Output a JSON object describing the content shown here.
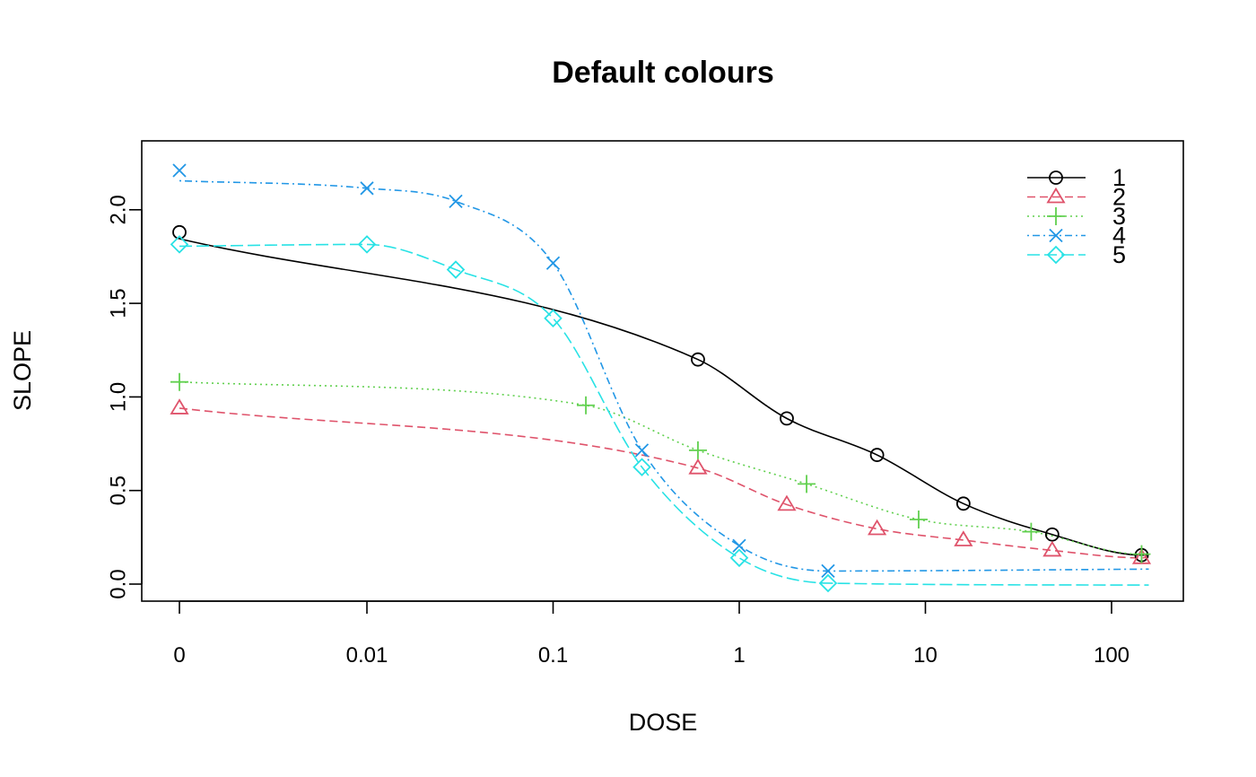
{
  "chart_data": {
    "type": "line",
    "title": "Default colours",
    "xlabel": "DOSE",
    "ylabel": "SLOPE",
    "x_scale": "log (zero plotted at leftmost position)",
    "x_ticks": [
      {
        "value": 0,
        "label": "0"
      },
      {
        "value": 0.01,
        "label": "0.01"
      },
      {
        "value": 0.1,
        "label": "0.1"
      },
      {
        "value": 1,
        "label": "1"
      },
      {
        "value": 10,
        "label": "10"
      },
      {
        "value": 100,
        "label": "100"
      }
    ],
    "y_ticks": [
      {
        "value": 0.0,
        "label": "0.0"
      },
      {
        "value": 0.5,
        "label": "0.5"
      },
      {
        "value": 1.0,
        "label": "1.0"
      },
      {
        "value": 1.5,
        "label": "1.5"
      },
      {
        "value": 2.0,
        "label": "2.0"
      }
    ],
    "ylim": [
      -0.08,
      2.3
    ],
    "grid": false,
    "legend_position": "top-right",
    "series": [
      {
        "name": "1",
        "color": "#000000",
        "marker": "circle",
        "dash": "solid",
        "points": [
          [
            0,
            1.88
          ],
          [
            0.6,
            1.2
          ],
          [
            1.8,
            0.885
          ],
          [
            5.5,
            0.69
          ],
          [
            16,
            0.43
          ],
          [
            48,
            0.265
          ],
          [
            145,
            0.155
          ]
        ],
        "fit_y_at_zero": 1.845,
        "fit_y_at_max": 0.155
      },
      {
        "name": "2",
        "color": "#DF536B",
        "marker": "triangle",
        "dash": "dashed",
        "points": [
          [
            0,
            0.94
          ],
          [
            0.6,
            0.62
          ],
          [
            1.8,
            0.425
          ],
          [
            5.5,
            0.295
          ],
          [
            16,
            0.235
          ],
          [
            48,
            0.18
          ],
          [
            145,
            0.14
          ]
        ],
        "fit_y_at_zero": 0.94,
        "fit_y_at_max": 0.145
      },
      {
        "name": "3",
        "color": "#61D04F",
        "marker": "plus",
        "dash": "dotted",
        "points": [
          [
            0,
            1.08
          ],
          [
            0.15,
            0.955
          ],
          [
            0.6,
            0.715
          ],
          [
            2.3,
            0.535
          ],
          [
            9.2,
            0.345
          ],
          [
            37,
            0.28
          ],
          [
            145,
            0.16
          ]
        ],
        "fit_y_at_zero": 1.08,
        "fit_y_at_max": 0.165
      },
      {
        "name": "4",
        "color": "#2297E6",
        "marker": "cross",
        "dash": "dotdash",
        "points": [
          [
            0,
            2.21
          ],
          [
            0.01,
            2.115
          ],
          [
            0.03,
            2.045
          ],
          [
            0.1,
            1.715
          ],
          [
            0.3,
            0.715
          ],
          [
            1,
            0.205
          ],
          [
            3,
            0.07
          ]
        ],
        "fit_y_at_zero": 2.155,
        "fit_y_at_max": 0.08
      },
      {
        "name": "5",
        "color": "#28E2E5",
        "marker": "diamond",
        "dash": "longdash",
        "points": [
          [
            0,
            1.815
          ],
          [
            0.01,
            1.815
          ],
          [
            0.03,
            1.68
          ],
          [
            0.1,
            1.42
          ],
          [
            0.3,
            0.625
          ],
          [
            1,
            0.14
          ],
          [
            3,
            0.005
          ]
        ],
        "fit_y_at_zero": 1.805,
        "fit_y_at_max": -0.005
      }
    ]
  }
}
